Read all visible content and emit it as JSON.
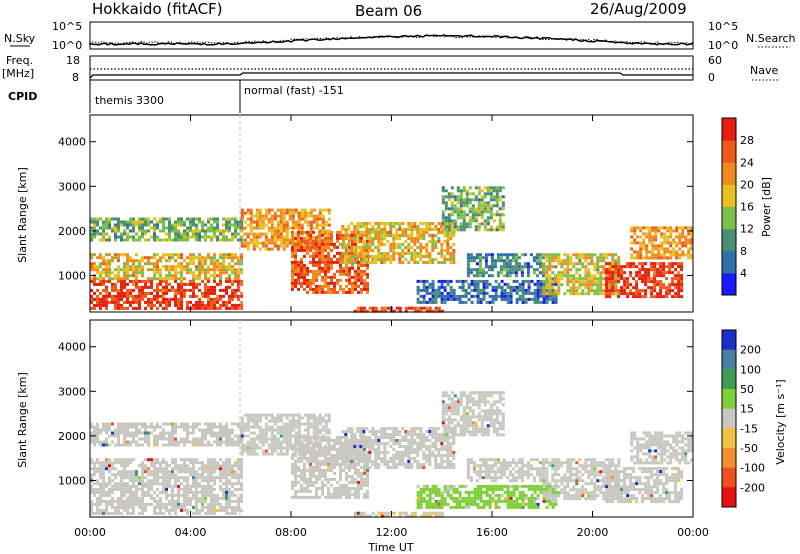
{
  "header": {
    "station": "Hokkaido (fitACF)",
    "beam": "Beam 06",
    "date": "26/Aug/2009"
  },
  "top_panels": {
    "left_labels": [
      "N.Sky",
      "Freq.",
      "[MHz]",
      "CPID"
    ],
    "right_labels": [
      "N.Search",
      "Nave"
    ],
    "nsky_ticks": [
      "10^5",
      "10^0"
    ],
    "nsearch_ticks": [
      "10^5",
      "10^0"
    ],
    "freq_ticks": [
      "18",
      "8"
    ],
    "nave_ticks": [
      "60",
      "0"
    ],
    "cpid": [
      {
        "label": "themis 3300",
        "start_hour": 0
      },
      {
        "label": "normal (fast) -151",
        "start_hour": 6
      }
    ]
  },
  "panels": {
    "ylabel": "Slant Range [km]",
    "y_ticks": [
      "1000",
      "2000",
      "3000",
      "4000"
    ],
    "x_ticks": [
      "00:00",
      "04:00",
      "08:00",
      "12:00",
      "16:00",
      "20:00",
      "00:00"
    ],
    "xlabel": "Time UT"
  },
  "power_scale": {
    "label": "Power [dB]",
    "ticks": [
      "4",
      "8",
      "12",
      "16",
      "20",
      "24",
      "28"
    ],
    "colors": [
      "#1a1aff",
      "#2e6fa8",
      "#4a8f74",
      "#7bc04a",
      "#e8c020",
      "#f08a20",
      "#ee5a1a",
      "#e81e0e"
    ]
  },
  "velocity_scale": {
    "label": "Velocity [m s⁻¹]",
    "ticks": [
      "200",
      "100",
      "50",
      "15",
      "-15",
      "-50",
      "-100",
      "-200"
    ],
    "colors": [
      "#1a30c8",
      "#4a7fa0",
      "#3f9f50",
      "#7fcf3a",
      "#c8c8c0",
      "#f0c040",
      "#f09030",
      "#f05020",
      "#e81010"
    ]
  },
  "chart_data": {
    "type": "heatmap",
    "title": "Hokkaido (fitACF)  Beam 06  26/Aug/2009",
    "xlabel": "Time UT",
    "ylabel": "Slant Range [km]",
    "xlim": [
      0,
      24
    ],
    "ylim": [
      180,
      4600
    ],
    "x_ticks": [
      "00:00",
      "04:00",
      "08:00",
      "12:00",
      "16:00",
      "20:00",
      "00:00"
    ],
    "y_ticks": [
      1000,
      2000,
      3000,
      4000
    ],
    "panels": [
      {
        "name": "Power",
        "unit": "dB",
        "scale": [
          0,
          30
        ]
      },
      {
        "name": "Velocity",
        "unit": "m s-1",
        "scale": [
          -200,
          200
        ]
      }
    ],
    "regions": [
      {
        "t0": 0.0,
        "t1": 6.0,
        "r0": 250,
        "r1": 900,
        "power": 27,
        "velocity": -10
      },
      {
        "t0": 0.0,
        "t1": 6.0,
        "r0": 900,
        "r1": 1500,
        "power": 18,
        "velocity": 0
      },
      {
        "t0": 0.0,
        "t1": 6.0,
        "r0": 1800,
        "r1": 2300,
        "power": 12,
        "velocity": 0
      },
      {
        "t0": 6.0,
        "t1": 9.5,
        "r0": 1600,
        "r1": 2500,
        "power": 20,
        "velocity": 0
      },
      {
        "t0": 8.0,
        "t1": 11.0,
        "r0": 600,
        "r1": 2000,
        "power": 24,
        "velocity": 5
      },
      {
        "t0": 10.0,
        "t1": 14.5,
        "r0": 1300,
        "r1": 2200,
        "power": 18,
        "velocity": 0
      },
      {
        "t0": 10.5,
        "t1": 14.0,
        "r0": 180,
        "r1": 300,
        "power": 26,
        "velocity": -20
      },
      {
        "t0": 14.0,
        "t1": 16.5,
        "r0": 2000,
        "r1": 3000,
        "power": 12,
        "velocity": 0
      },
      {
        "t0": 15.0,
        "t1": 18.0,
        "r0": 1000,
        "r1": 1500,
        "power": 8,
        "velocity": 0
      },
      {
        "t0": 13.0,
        "t1": 18.5,
        "r0": 400,
        "r1": 900,
        "power": 6,
        "velocity": 30
      },
      {
        "t0": 18.0,
        "t1": 21.0,
        "r0": 600,
        "r1": 1500,
        "power": 16,
        "velocity": 0
      },
      {
        "t0": 20.5,
        "t1": 23.5,
        "r0": 500,
        "r1": 1300,
        "power": 27,
        "velocity": -5
      },
      {
        "t0": 21.5,
        "t1": 24.0,
        "r0": 1400,
        "r1": 2100,
        "power": 20,
        "velocity": 0
      }
    ]
  }
}
